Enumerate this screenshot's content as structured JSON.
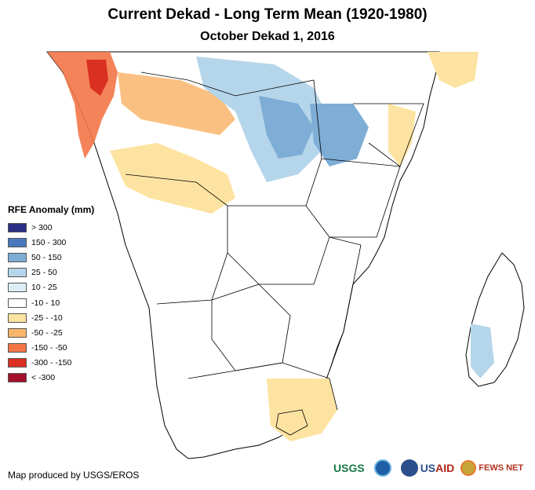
{
  "title": "Current Dekad - Long Term Mean (1920-1980)",
  "subtitle": "October Dekad 1, 2016",
  "legend": {
    "title": "RFE Anomaly (mm)",
    "items": [
      {
        "label": "> 300",
        "color": "#2b2e86"
      },
      {
        "label": "150 - 300",
        "color": "#4a78be"
      },
      {
        "label": "50 - 150",
        "color": "#7eadd6"
      },
      {
        "label": "25 - 50",
        "color": "#b5d5ea"
      },
      {
        "label": "10 - 25",
        "color": "#dcedf6"
      },
      {
        "label": "-10 - 10",
        "color": "#ffffff"
      },
      {
        "label": "-25 - -10",
        "color": "#fde3a1"
      },
      {
        "label": "-50 - -25",
        "color": "#f9b56b"
      },
      {
        "label": "-150 - -50",
        "color": "#f37647"
      },
      {
        "label": "-300 - -150",
        "color": "#d93022"
      },
      {
        "label": "< -300",
        "color": "#a2102c"
      }
    ]
  },
  "credit": "Map produced by USGS/EROS",
  "logos": {
    "usgs": "USGS",
    "usaid_prefix": "US",
    "usaid_suffix": "AID",
    "fews": "FEWS NET"
  }
}
